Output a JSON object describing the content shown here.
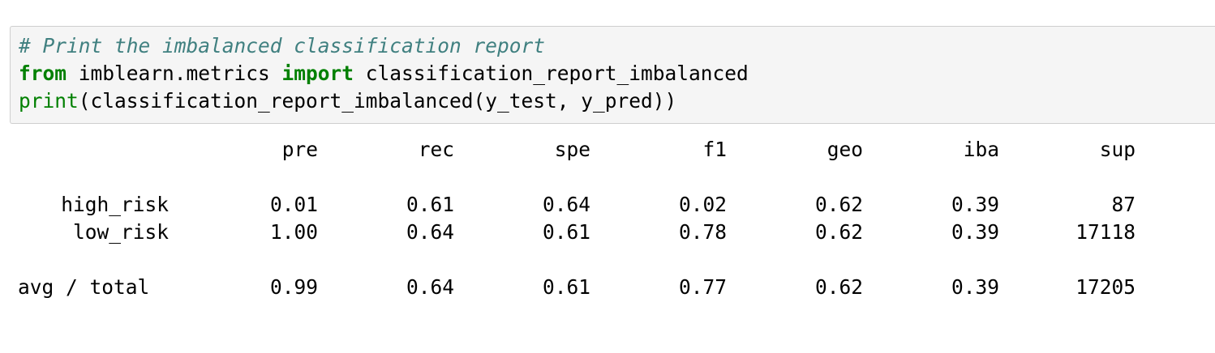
{
  "code_cell": {
    "comment": "# Print the imbalanced classification report",
    "line2": {
      "kw_from": "from",
      "module": " imblearn.metrics ",
      "kw_import": "import",
      "name": " classification_report_imbalanced"
    },
    "line3": {
      "builtin": "print",
      "rest": "(classification_report_imbalanced(y_test, y_pred))"
    }
  },
  "report": {
    "headers": [
      "pre",
      "rec",
      "spe",
      "f1",
      "geo",
      "iba",
      "sup"
    ],
    "rows": [
      {
        "label": "high_risk",
        "values": [
          "0.01",
          "0.61",
          "0.64",
          "0.02",
          "0.62",
          "0.39",
          "87"
        ]
      },
      {
        "label": "low_risk",
        "values": [
          "1.00",
          "0.64",
          "0.61",
          "0.78",
          "0.62",
          "0.39",
          "17118"
        ]
      }
    ],
    "total": {
      "label": "avg / total",
      "values": [
        "0.99",
        "0.64",
        "0.61",
        "0.77",
        "0.62",
        "0.39",
        "17205"
      ]
    }
  }
}
